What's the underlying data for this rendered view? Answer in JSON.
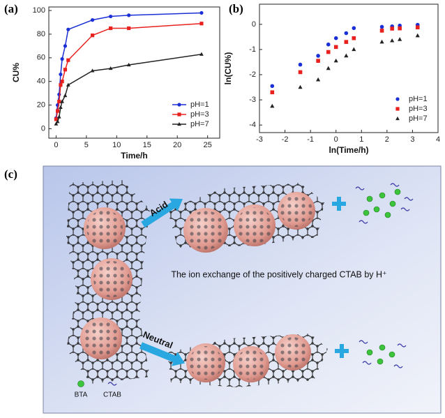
{
  "chart_data": [
    {
      "type": "line",
      "label": "(a)",
      "xlabel": "Time/h",
      "ylabel": "CU%",
      "x": [
        0,
        0.25,
        0.5,
        0.75,
        1,
        1.5,
        2,
        6,
        9,
        12,
        24
      ],
      "xlim": [
        -1.2,
        27
      ],
      "xticks": [
        0,
        5,
        10,
        15,
        20,
        25
      ],
      "ylim": [
        -8,
        103
      ],
      "yticks": [
        0,
        20,
        40,
        60,
        80,
        100
      ],
      "legend": "lower right",
      "series": [
        {
          "name": "pH=1",
          "color": "#1a2fd6",
          "marker": "circle",
          "values": [
            9,
            20,
            29,
            46,
            59,
            70,
            84,
            92,
            95,
            96,
            98
          ]
        },
        {
          "name": "pH=3",
          "color": "#e8211e",
          "marker": "square",
          "values": [
            8,
            15,
            23,
            37,
            40,
            50,
            58,
            79,
            85,
            85,
            89
          ]
        },
        {
          "name": "pH=7",
          "color": "#222222",
          "marker": "triangle",
          "values": [
            4,
            6,
            10,
            18,
            23,
            28,
            37,
            49,
            51,
            54,
            63
          ]
        }
      ]
    },
    {
      "type": "scatter",
      "label": "(b)",
      "xlabel": "ln(Time/h)",
      "ylabel": "ln(CU%)",
      "x": [
        -2.5,
        -1.4,
        -0.7,
        -0.3,
        0,
        0.4,
        0.7,
        1.8,
        2.2,
        2.5,
        3.2
      ],
      "xlim": [
        -3,
        4
      ],
      "xticks": [
        -3,
        -2,
        -1,
        0,
        1,
        2,
        3,
        4
      ],
      "ylim": [
        -4.3,
        0.8
      ],
      "yticks": [
        0,
        -1,
        -2,
        -3,
        -4
      ],
      "legend": "lower right",
      "series": [
        {
          "name": "pH=1",
          "color": "#1a2fd6",
          "marker": "circle",
          "values": [
            -2.45,
            -1.6,
            -1.25,
            -0.8,
            -0.55,
            -0.35,
            -0.15,
            -0.1,
            -0.08,
            -0.05,
            -0.02
          ]
        },
        {
          "name": "pH=3",
          "color": "#e8211e",
          "marker": "square",
          "values": [
            -2.7,
            -1.9,
            -1.45,
            -1.1,
            -0.9,
            -0.7,
            -0.55,
            -0.25,
            -0.17,
            -0.16,
            -0.12
          ]
        },
        {
          "name": "pH=7",
          "color": "#222222",
          "marker": "triangle",
          "values": [
            -3.25,
            -2.5,
            -2.2,
            -1.75,
            -1.45,
            -1.25,
            -1.0,
            -0.7,
            -0.65,
            -0.6,
            -0.45
          ]
        }
      ]
    }
  ],
  "diagram": {
    "label": "(c)",
    "acid": "Acid",
    "neutral": "Neutral",
    "caption": "The ion exchange of the positively charged CTAB by H⁺",
    "legend": [
      "BTA",
      "CTAB"
    ]
  }
}
